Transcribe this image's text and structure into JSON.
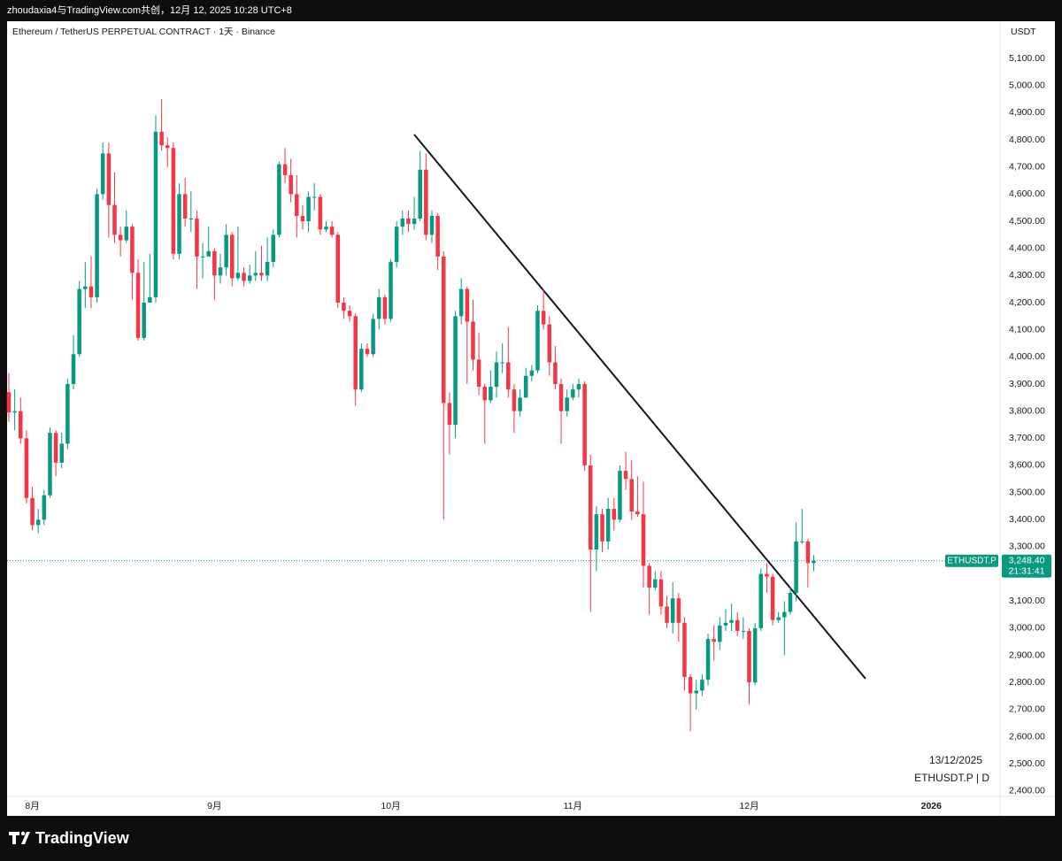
{
  "top_bar": "zhoudaxia4与TradingView.com共创，12月 12, 2025 10:28 UTC+8",
  "footer": "TradingView",
  "chart_data": {
    "type": "candlestick",
    "title": "Ethereum / TetherUS PERPETUAL CONTRACT · 1天 · Binance",
    "y_label": "USDT",
    "symbol": "ETHUSDT.P",
    "countdown": "21:31:41",
    "last_price": {
      "value": 3248.4,
      "label": "3,248.40"
    },
    "annotations": [
      "13/12/2025",
      "ETHUSDT.P | D"
    ],
    "up_color": "#089981",
    "down_color": "#f23645",
    "grid": false,
    "open": [
      3870,
      3795,
      3800,
      3700,
      3480,
      3380,
      3400,
      3490,
      3720,
      3610,
      3680,
      3900,
      4010,
      4250,
      4260,
      4220,
      4600,
      4750,
      4560,
      4450,
      4430,
      4480,
      4310,
      4070,
      4200,
      4220,
      4830,
      4780,
      4770,
      4380,
      4600,
      4510,
      4510,
      4370,
      4370,
      4390,
      4300,
      4330,
      4450,
      4290,
      4310,
      4280,
      4300,
      4310,
      4300,
      4350,
      4450,
      4710,
      4670,
      4600,
      4520,
      4500,
      4590,
      4590,
      4470,
      4480,
      4450,
      4200,
      4170,
      4150,
      3880,
      4030,
      4010,
      4140,
      4220,
      4140,
      4350,
      4480,
      4510,
      4490,
      4510,
      4690,
      4450,
      4520,
      4370,
      3830,
      3750,
      4150,
      4250,
      4130,
      3990,
      3890,
      3840,
      3890,
      3980,
      3980,
      3880,
      3800,
      3850,
      3930,
      3950,
      4170,
      4120,
      3980,
      3900,
      3800,
      3850,
      3880,
      3900,
      3600,
      3290,
      3420,
      3320,
      3440,
      3400,
      3580,
      3550,
      3430,
      3420,
      3230,
      3150,
      3180,
      3080,
      3020,
      3110,
      3020,
      2820,
      2760,
      2770,
      2810,
      2960,
      2950,
      3010,
      3020,
      3030,
      2990,
      2990,
      2800,
      3000,
      3200,
      3190,
      3030,
      3040,
      3060,
      3130,
      3320,
      3320,
      3240
    ],
    "high": [
      3940,
      3880,
      3850,
      3730,
      3520,
      3440,
      3510,
      3740,
      3730,
      3720,
      3920,
      4080,
      4280,
      4350,
      4370,
      4620,
      4790,
      4790,
      4680,
      4480,
      4540,
      4490,
      4360,
      4350,
      4380,
      4890,
      4950,
      4810,
      4790,
      4640,
      4660,
      4610,
      4540,
      4420,
      4480,
      4400,
      4380,
      4490,
      4460,
      4480,
      4330,
      4340,
      4390,
      4410,
      4440,
      4470,
      4720,
      4770,
      4730,
      4670,
      4560,
      4610,
      4640,
      4600,
      4500,
      4500,
      4460,
      4220,
      4190,
      4160,
      4050,
      4050,
      4160,
      4250,
      4230,
      4360,
      4500,
      4540,
      4540,
      4590,
      4760,
      4750,
      4540,
      4530,
      4390,
      3870,
      4170,
      4290,
      4260,
      4210,
      4090,
      3900,
      3950,
      4020,
      4050,
      4110,
      3900,
      3880,
      3960,
      3970,
      4190,
      4250,
      4150,
      4040,
      3920,
      3880,
      3900,
      3920,
      3910,
      3640,
      3450,
      3440,
      3480,
      3480,
      3600,
      3650,
      3620,
      3560,
      3540,
      3240,
      3210,
      3210,
      3120,
      3170,
      3130,
      3040,
      2830,
      2810,
      2830,
      2980,
      3010,
      3040,
      3070,
      3090,
      3060,
      3040,
      3000,
      3020,
      3220,
      3240,
      3200,
      3060,
      3100,
      3150,
      3390,
      3440,
      3330,
      3270
    ],
    "low": [
      3760,
      3730,
      3680,
      3460,
      3360,
      3350,
      3380,
      3480,
      3560,
      3590,
      3660,
      3880,
      4000,
      4180,
      4180,
      4200,
      4580,
      4440,
      4420,
      4370,
      4420,
      4210,
      4060,
      4060,
      4200,
      4200,
      4760,
      4700,
      4360,
      4360,
      4480,
      4460,
      4250,
      4290,
      4370,
      4210,
      4270,
      4300,
      4260,
      4280,
      4260,
      4270,
      4280,
      4280,
      4280,
      4330,
      4440,
      4640,
      4570,
      4440,
      4470,
      4460,
      4540,
      4450,
      4460,
      4440,
      4180,
      4140,
      4130,
      3820,
      3870,
      4000,
      4000,
      4100,
      4120,
      4130,
      4330,
      4450,
      4460,
      4470,
      4500,
      4430,
      4420,
      4320,
      3400,
      3640,
      3700,
      4120,
      3900,
      3950,
      3860,
      3680,
      3830,
      3850,
      3940,
      3850,
      3720,
      3780,
      3850,
      3910,
      3940,
      4100,
      3930,
      3880,
      3680,
      3780,
      3840,
      3850,
      3580,
      3060,
      3210,
      3280,
      3290,
      3360,
      3390,
      3510,
      3400,
      3410,
      3150,
      3050,
      3140,
      3050,
      3000,
      2980,
      2950,
      2770,
      2620,
      2700,
      2750,
      2790,
      2880,
      2920,
      2990,
      2990,
      2970,
      2960,
      2720,
      2790,
      2990,
      3130,
      3010,
      3020,
      2900,
      3050,
      3100,
      3310,
      3150,
      3210
    ],
    "close": [
      3795,
      3800,
      3700,
      3480,
      3380,
      3400,
      3490,
      3720,
      3610,
      3680,
      3900,
      4010,
      4250,
      4260,
      4220,
      4600,
      4750,
      4560,
      4450,
      4430,
      4480,
      4310,
      4070,
      4200,
      4220,
      4830,
      4780,
      4770,
      4380,
      4600,
      4510,
      4510,
      4370,
      4370,
      4390,
      4300,
      4330,
      4450,
      4290,
      4310,
      4280,
      4300,
      4310,
      4300,
      4350,
      4450,
      4710,
      4670,
      4600,
      4520,
      4500,
      4590,
      4590,
      4470,
      4480,
      4450,
      4200,
      4170,
      4150,
      3880,
      4030,
      4010,
      4140,
      4220,
      4140,
      4350,
      4480,
      4510,
      4490,
      4510,
      4690,
      4450,
      4520,
      4370,
      3830,
      3750,
      4150,
      4250,
      4130,
      3990,
      3890,
      3840,
      3890,
      3980,
      3980,
      3880,
      3800,
      3850,
      3930,
      3950,
      4170,
      4120,
      3980,
      3900,
      3800,
      3850,
      3880,
      3900,
      3600,
      3290,
      3420,
      3320,
      3440,
      3400,
      3580,
      3550,
      3430,
      3420,
      3230,
      3150,
      3180,
      3080,
      3020,
      3110,
      3020,
      2820,
      2760,
      2770,
      2810,
      2960,
      2950,
      3010,
      3020,
      3030,
      2990,
      2990,
      2800,
      3000,
      3200,
      3190,
      3030,
      3040,
      3060,
      3130,
      3320,
      3320,
      3240,
      3248.4
    ],
    "xlim": [
      -0.3,
      168.4
    ],
    "xticks": [
      {
        "value": 4,
        "label": "8月"
      },
      {
        "value": 35,
        "label": "9月"
      },
      {
        "value": 65,
        "label": "10月"
      },
      {
        "value": 96,
        "label": "11月"
      },
      {
        "value": 126,
        "label": "12月"
      },
      {
        "value": 157,
        "label": "2026"
      }
    ],
    "ylim": [
      2380,
      5234
    ],
    "yticks": [
      {
        "value": 5100,
        "label": "5,100.00"
      },
      {
        "value": 5000,
        "label": "5,000.00"
      },
      {
        "value": 4900,
        "label": "4,900.00"
      },
      {
        "value": 4800,
        "label": "4,800.00"
      },
      {
        "value": 4700,
        "label": "4,700.00"
      },
      {
        "value": 4600,
        "label": "4,600.00"
      },
      {
        "value": 4500,
        "label": "4,500.00"
      },
      {
        "value": 4400,
        "label": "4,400.00"
      },
      {
        "value": 4300,
        "label": "4,300.00"
      },
      {
        "value": 4200,
        "label": "4,200.00"
      },
      {
        "value": 4100,
        "label": "4,100.00"
      },
      {
        "value": 4000,
        "label": "4,000.00"
      },
      {
        "value": 3900,
        "label": "3,900.00"
      },
      {
        "value": 3800,
        "label": "3,800.00"
      },
      {
        "value": 3700,
        "label": "3,700.00"
      },
      {
        "value": 3600,
        "label": "3,600.00"
      },
      {
        "value": 3500,
        "label": "3,500.00"
      },
      {
        "value": 3400,
        "label": "3,400.00"
      },
      {
        "value": 3300,
        "label": "3,300.00"
      },
      {
        "value": 3100,
        "label": "3,100.00"
      },
      {
        "value": 3000,
        "label": "3,000.00"
      },
      {
        "value": 2900,
        "label": "2,900.00"
      },
      {
        "value": 2800,
        "label": "2,800.00"
      },
      {
        "value": 2700,
        "label": "2,700.00"
      },
      {
        "value": 2600,
        "label": "2,600.00"
      },
      {
        "value": 2500,
        "label": "2,500.00"
      },
      {
        "value": 2400,
        "label": "2,400.00"
      }
    ]
  }
}
